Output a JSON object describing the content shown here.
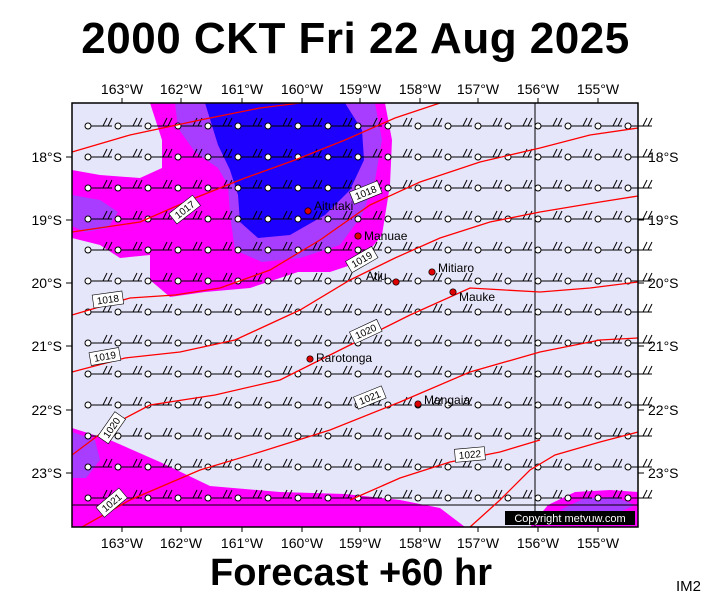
{
  "title": "2000 CKT Fri 22 Aug 2025",
  "forecast": "Forecast +60 hr",
  "image_id": "IM2",
  "copyright": "Copyright metvuw.com",
  "lon_labels": [
    "163°W",
    "162°W",
    "161°W",
    "160°W",
    "159°W",
    "158°W",
    "157°W",
    "156°W",
    "155°W"
  ],
  "lat_labels": [
    "18°S",
    "19°S",
    "20°S",
    "21°S",
    "22°S",
    "23°S"
  ],
  "places": [
    {
      "name": "Aitutaki"
    },
    {
      "name": "Manuae"
    },
    {
      "name": "Atiu"
    },
    {
      "name": "Mitiaro"
    },
    {
      "name": "Mauke"
    },
    {
      "name": "Rarotonga"
    },
    {
      "name": "Mangaia"
    }
  ],
  "isobar_labels": [
    "1017",
    "1018",
    "1018",
    "1019",
    "1019",
    "1020",
    "1020",
    "1021",
    "1021",
    "1022"
  ],
  "colors": {
    "sea": "#e6e6fa",
    "rain_light": "#ff00ff",
    "rain_medium": "#b026ff",
    "rain_heavy": "#1e00ff",
    "isobar": "#ff0000",
    "place_marker": "#dd0000"
  }
}
